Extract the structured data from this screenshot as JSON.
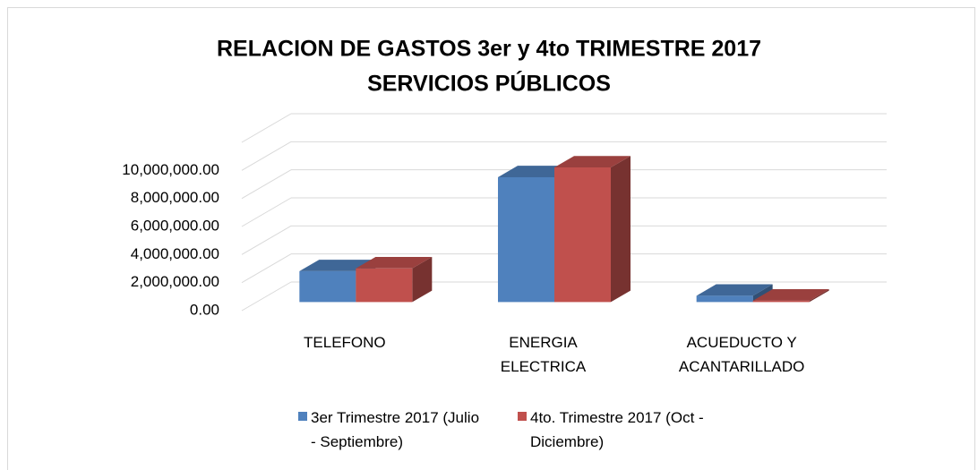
{
  "chart_data": {
    "type": "bar3d",
    "title": "RELACION DE GASTOS 3er y 4to TRIMESTRE 2017",
    "subtitle": "SERVICIOS PÚBLICOS",
    "categories": [
      "TELEFONO",
      "ENERGIA ELECTRICA",
      "ACUEDUCTO Y ACANTARILLADO"
    ],
    "series": [
      {
        "name": "3er Trimestre 2017 (Julio - Septiembre)",
        "color": "#4f81bd",
        "values": [
          2200000,
          8900000,
          450000
        ]
      },
      {
        "name": "4to. Trimestre 2017 (Oct - Diciembre)",
        "color": "#c0504d",
        "values": [
          2400000,
          9600000,
          100000
        ]
      }
    ],
    "ylim": [
      0,
      12000000
    ],
    "yticks": [
      {
        "value": 0,
        "label": "0.00"
      },
      {
        "value": 2000000,
        "label": "2,000,000.00"
      },
      {
        "value": 4000000,
        "label": "4,000,000.00"
      },
      {
        "value": 6000000,
        "label": "6,000,000.00"
      },
      {
        "value": 8000000,
        "label": "8,000,000.00"
      },
      {
        "value": 10000000,
        "label": "10,000,000.00"
      }
    ],
    "grid": true,
    "legend": "bottom"
  }
}
